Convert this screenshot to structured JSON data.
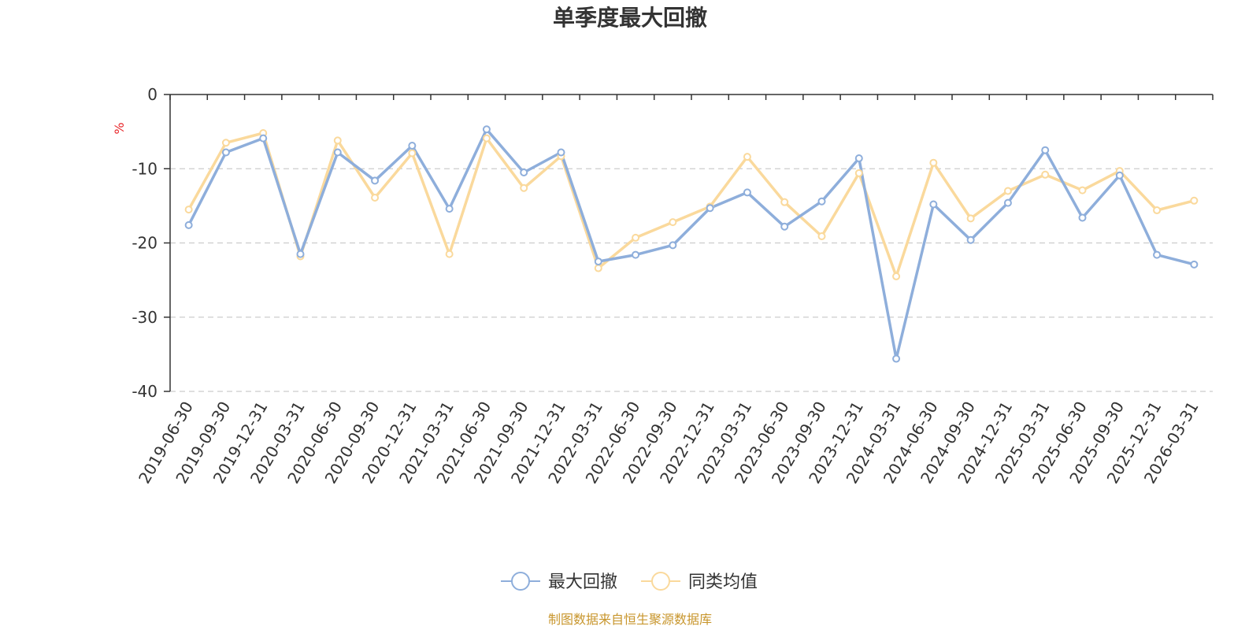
{
  "chart_data": {
    "type": "line",
    "title": "单季度最大回撤",
    "ylabel": "%",
    "ylim": [
      -40,
      0
    ],
    "yticks": [
      0,
      -10,
      -20,
      -30,
      -40
    ],
    "grid": true,
    "legend_position": "bottom-center",
    "categories": [
      "2019-06-30",
      "2019-09-30",
      "2019-12-31",
      "2020-03-31",
      "2020-06-30",
      "2020-09-30",
      "2020-12-31",
      "2021-03-31",
      "2021-06-30",
      "2021-09-30",
      "2021-12-31",
      "2022-03-31",
      "2022-06-30",
      "2022-09-30",
      "2022-12-31",
      "2023-03-31",
      "2023-06-30",
      "2023-09-30",
      "2023-12-31",
      "2024-03-31",
      "2024-06-30",
      "2024-09-30",
      "2024-12-31",
      "2025-03-31",
      "2025-06-30",
      "2025-09-30",
      "2025-12-31",
      "2026-03-31"
    ],
    "series": [
      {
        "name": "最大回撤",
        "color": "#8eaedb",
        "values": [
          -17.6,
          -7.8,
          -5.9,
          -21.5,
          -7.8,
          -11.6,
          -6.9,
          -15.4,
          -4.7,
          -10.5,
          -7.8,
          -22.5,
          -21.6,
          -20.3,
          -15.3,
          -13.2,
          -17.8,
          -14.4,
          -8.6,
          -35.6,
          -14.8,
          -19.6,
          -14.6,
          -7.5,
          -16.6,
          -10.9,
          -21.6,
          -22.9
        ]
      },
      {
        "name": "同类均值",
        "color": "#fad99c",
        "values": [
          -15.5,
          -6.5,
          -5.2,
          -21.8,
          -6.2,
          -13.9,
          -7.9,
          -21.5,
          -5.9,
          -12.6,
          -8.3,
          -23.4,
          -19.3,
          -17.2,
          -15.1,
          -8.4,
          -14.5,
          -19.1,
          -10.6,
          -24.5,
          -9.2,
          -16.7,
          -13.0,
          -10.8,
          -12.9,
          -10.3,
          -15.6,
          -14.3
        ]
      }
    ]
  },
  "source": {
    "text": "制图数据来自恒生聚源数据库",
    "color": "#c8962d"
  }
}
